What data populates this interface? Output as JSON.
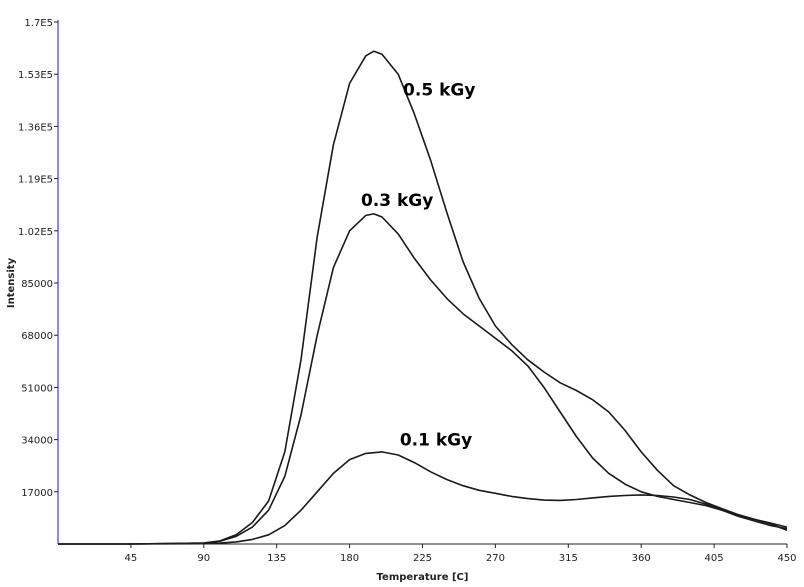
{
  "chart_data": {
    "type": "line",
    "title": "",
    "xlabel": "Temperature [C]",
    "ylabel": "Intensity",
    "xlim": [
      0,
      450
    ],
    "ylim": [
      0,
      170000
    ],
    "grid": false,
    "legend": "none",
    "axis_color": "#3a3aff",
    "line_color": "#1a1a1a",
    "x_ticks": [
      45,
      90,
      135,
      180,
      225,
      270,
      315,
      360,
      405,
      450
    ],
    "x_tick_labels": [
      "45",
      "90",
      "135",
      "180",
      "225",
      "270",
      "315",
      "360",
      "405",
      "450"
    ],
    "y_ticks": [
      17000,
      34000,
      51000,
      68000,
      85000,
      102000,
      119000,
      136000,
      153000,
      170000
    ],
    "y_tick_labels": [
      "17000",
      "34000",
      "51000",
      "68000",
      "85000",
      "1.02E5",
      "1.19E5",
      "1.36E5",
      "1.53E5",
      "1.7E5"
    ],
    "series": [
      {
        "name": "0.5 kGy",
        "label_at": [
          213,
          146000
        ],
        "points": [
          [
            0,
            0
          ],
          [
            45,
            0
          ],
          [
            90,
            300
          ],
          [
            100,
            1000
          ],
          [
            110,
            3000
          ],
          [
            120,
            7000
          ],
          [
            130,
            14000
          ],
          [
            140,
            30000
          ],
          [
            150,
            60000
          ],
          [
            160,
            100000
          ],
          [
            170,
            130000
          ],
          [
            180,
            150000
          ],
          [
            190,
            159000
          ],
          [
            195,
            160500
          ],
          [
            200,
            159500
          ],
          [
            210,
            153000
          ],
          [
            220,
            140000
          ],
          [
            230,
            125000
          ],
          [
            240,
            108000
          ],
          [
            250,
            92000
          ],
          [
            260,
            80000
          ],
          [
            270,
            71000
          ],
          [
            280,
            65000
          ],
          [
            290,
            60000
          ],
          [
            300,
            56000
          ],
          [
            310,
            52500
          ],
          [
            320,
            50000
          ],
          [
            330,
            47000
          ],
          [
            340,
            43000
          ],
          [
            350,
            37000
          ],
          [
            360,
            30000
          ],
          [
            370,
            24000
          ],
          [
            380,
            19000
          ],
          [
            390,
            16000
          ],
          [
            400,
            13500
          ],
          [
            410,
            11500
          ],
          [
            420,
            9500
          ],
          [
            430,
            8000
          ],
          [
            440,
            6800
          ],
          [
            450,
            5500
          ]
        ]
      },
      {
        "name": "0.3 kGy",
        "label_at": [
          187,
          110000
        ],
        "points": [
          [
            0,
            0
          ],
          [
            45,
            0
          ],
          [
            90,
            300
          ],
          [
            100,
            900
          ],
          [
            110,
            2500
          ],
          [
            120,
            5500
          ],
          [
            130,
            11000
          ],
          [
            140,
            22000
          ],
          [
            150,
            42000
          ],
          [
            160,
            68000
          ],
          [
            170,
            90000
          ],
          [
            180,
            102000
          ],
          [
            190,
            107000
          ],
          [
            195,
            107500
          ],
          [
            200,
            106500
          ],
          [
            210,
            101000
          ],
          [
            220,
            93000
          ],
          [
            230,
            86000
          ],
          [
            240,
            80000
          ],
          [
            250,
            75000
          ],
          [
            260,
            71000
          ],
          [
            270,
            67000
          ],
          [
            280,
            63000
          ],
          [
            290,
            58000
          ],
          [
            300,
            51000
          ],
          [
            310,
            43000
          ],
          [
            320,
            35000
          ],
          [
            330,
            28000
          ],
          [
            340,
            23000
          ],
          [
            350,
            19500
          ],
          [
            360,
            17000
          ],
          [
            370,
            15500
          ],
          [
            380,
            14500
          ],
          [
            390,
            13500
          ],
          [
            400,
            12500
          ],
          [
            410,
            11000
          ],
          [
            420,
            9500
          ],
          [
            430,
            8000
          ],
          [
            440,
            6500
          ],
          [
            450,
            4500
          ]
        ]
      },
      {
        "name": "0.1 kGy",
        "label_at": [
          211,
          32000
        ],
        "points": [
          [
            0,
            0
          ],
          [
            45,
            0
          ],
          [
            90,
            100
          ],
          [
            100,
            300
          ],
          [
            110,
            700
          ],
          [
            120,
            1500
          ],
          [
            130,
            3000
          ],
          [
            140,
            6000
          ],
          [
            150,
            11000
          ],
          [
            160,
            17000
          ],
          [
            170,
            23000
          ],
          [
            180,
            27500
          ],
          [
            190,
            29500
          ],
          [
            200,
            30000
          ],
          [
            210,
            29000
          ],
          [
            220,
            26500
          ],
          [
            230,
            23500
          ],
          [
            240,
            21000
          ],
          [
            250,
            19000
          ],
          [
            260,
            17500
          ],
          [
            270,
            16500
          ],
          [
            280,
            15500
          ],
          [
            290,
            14800
          ],
          [
            300,
            14300
          ],
          [
            310,
            14200
          ],
          [
            320,
            14500
          ],
          [
            330,
            15000
          ],
          [
            340,
            15500
          ],
          [
            350,
            15800
          ],
          [
            360,
            16000
          ],
          [
            370,
            15800
          ],
          [
            380,
            15300
          ],
          [
            390,
            14500
          ],
          [
            400,
            13000
          ],
          [
            410,
            11000
          ],
          [
            420,
            9000
          ],
          [
            430,
            7500
          ],
          [
            440,
            6000
          ],
          [
            450,
            5000
          ]
        ]
      }
    ]
  }
}
